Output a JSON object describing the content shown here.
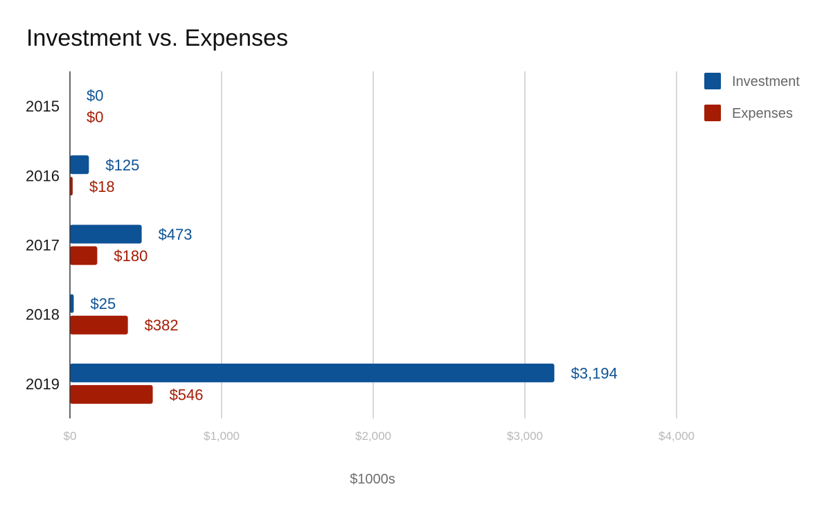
{
  "chart_data": {
    "type": "bar",
    "orientation": "horizontal",
    "title": "Investment vs. Expenses",
    "xlabel": "$1000s",
    "ylabel": "",
    "categories": [
      "2015",
      "2016",
      "2017",
      "2018",
      "2019"
    ],
    "series": [
      {
        "name": "Investment",
        "color": "#0d5295",
        "values": [
          0,
          125,
          473,
          25,
          3194
        ],
        "labels": [
          "$0",
          "$125",
          "$473",
          "$25",
          "$3,194"
        ]
      },
      {
        "name": "Expenses",
        "color": "#a51c04",
        "values": [
          0,
          18,
          180,
          382,
          546
        ],
        "labels": [
          "$0",
          "$18",
          "$180",
          "$382",
          "$546"
        ]
      }
    ],
    "xlim": [
      0,
      4000
    ],
    "xticks": [
      0,
      1000,
      2000,
      3000,
      4000
    ],
    "xtick_labels": [
      "$0",
      "$1,000",
      "$2,000",
      "$3,000",
      "$4,000"
    ],
    "grid": true,
    "legend": {
      "position": "top-right"
    }
  }
}
